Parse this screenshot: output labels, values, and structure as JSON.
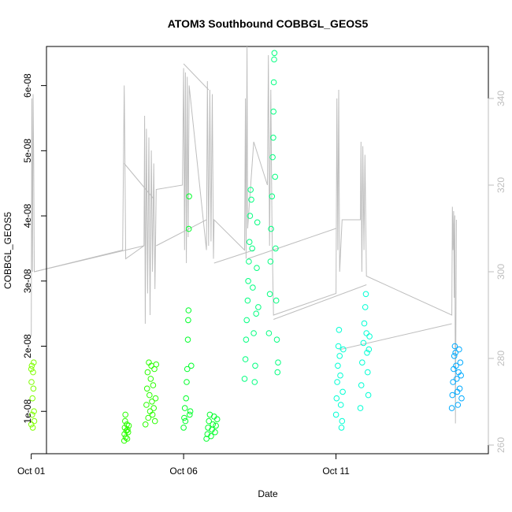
{
  "chart_data": {
    "type": "scatter",
    "title": "ATOM3 Southbound COBBGL_GEOS5",
    "xlabel": "Date",
    "ylabel": "COBBGL_GEOS5",
    "xlim_days": [
      0.5,
      15.0
    ],
    "ylim": [
      3.5e-09,
      6.6e-08
    ],
    "y2lim": [
      258,
      352
    ],
    "x_ticks": [
      {
        "day": 0,
        "label": "Oct 01"
      },
      {
        "day": 5,
        "label": "Oct 06"
      },
      {
        "day": 10,
        "label": "Oct 11"
      }
    ],
    "y_ticks": [
      {
        "value": 1e-08,
        "label": "1e-08"
      },
      {
        "value": 2e-08,
        "label": "2e-08"
      },
      {
        "value": 3e-08,
        "label": "3e-08"
      },
      {
        "value": 4e-08,
        "label": "4e-08"
      },
      {
        "value": 5e-08,
        "label": "5e-08"
      },
      {
        "value": 6e-08,
        "label": "6e-08"
      }
    ],
    "y2_ticks": [
      {
        "value": 260,
        "label": "260"
      },
      {
        "value": 280,
        "label": "280"
      },
      {
        "value": 300,
        "label": "300"
      },
      {
        "value": 320,
        "label": "320"
      },
      {
        "value": 340,
        "label": "340"
      }
    ],
    "series": [
      {
        "color": "#7fff00",
        "points": [
          [
            0.0,
            8e-09
          ],
          [
            0.0,
            1.65e-08
          ],
          [
            0.01,
            1.45e-08
          ],
          [
            0.02,
            1.7e-08
          ],
          [
            0.03,
            9.5e-09
          ],
          [
            0.04,
            1.2e-08
          ],
          [
            0.05,
            7.5e-09
          ],
          [
            0.06,
            1.6e-08
          ],
          [
            0.07,
            1.35e-08
          ],
          [
            0.08,
            1.75e-08
          ],
          [
            0.09,
            1e-08
          ],
          [
            0.1,
            8.5e-09
          ]
        ]
      },
      {
        "color": "#2aff00",
        "points": [
          [
            3.05,
            5.5e-09
          ],
          [
            3.06,
            6.5e-09
          ],
          [
            3.07,
            7.5e-09
          ],
          [
            3.08,
            8.5e-09
          ],
          [
            3.09,
            9.5e-09
          ],
          [
            3.1,
            6e-09
          ],
          [
            3.12,
            7e-09
          ],
          [
            3.14,
            8e-09
          ],
          [
            3.15,
            5.8e-09
          ],
          [
            3.16,
            7.2e-09
          ],
          [
            3.18,
            6.8e-09
          ],
          [
            3.2,
            7.8e-09
          ],
          [
            3.75,
            8e-09
          ],
          [
            3.78,
            1.1e-08
          ],
          [
            3.8,
            1.35e-08
          ],
          [
            3.82,
            1.6e-08
          ],
          [
            3.84,
            9e-09
          ],
          [
            3.86,
            1.75e-08
          ],
          [
            3.88,
            1.25e-08
          ],
          [
            3.9,
            1e-08
          ],
          [
            3.92,
            1.5e-08
          ],
          [
            3.94,
            1.7e-08
          ],
          [
            3.96,
            1.15e-08
          ],
          [
            3.98,
            9.5e-09
          ],
          [
            4.0,
            1.4e-08
          ],
          [
            4.02,
            1.05e-08
          ],
          [
            4.04,
            1.65e-08
          ],
          [
            4.06,
            8.5e-09
          ],
          [
            4.08,
            1.2e-08
          ],
          [
            4.1,
            1.72e-08
          ]
        ]
      },
      {
        "color": "#00ff2a",
        "points": [
          [
            5.0,
            7.5e-09
          ],
          [
            5.02,
            9e-09
          ],
          [
            5.04,
            1.05e-08
          ],
          [
            5.06,
            8.5e-09
          ],
          [
            5.08,
            1.2e-08
          ],
          [
            5.1,
            1.45e-08
          ],
          [
            5.12,
            1.65e-08
          ],
          [
            5.14,
            2.1e-08
          ],
          [
            5.15,
            2.4e-08
          ],
          [
            5.16,
            2.55e-08
          ],
          [
            5.17,
            3.8e-08
          ],
          [
            5.18,
            4.3e-08
          ],
          [
            5.2,
            9.5e-09
          ],
          [
            5.22,
            1e-08
          ],
          [
            5.25,
            1.7e-08
          ],
          [
            5.75,
            5.8e-09
          ],
          [
            5.78,
            6.5e-09
          ],
          [
            5.8,
            7.5e-09
          ],
          [
            5.83,
            8.5e-09
          ],
          [
            5.86,
            9.5e-09
          ],
          [
            5.9,
            6.2e-09
          ],
          [
            5.93,
            7.2e-09
          ],
          [
            5.96,
            8e-09
          ],
          [
            6.0,
            9.2e-09
          ],
          [
            6.03,
            6.8e-09
          ],
          [
            6.06,
            7.8e-09
          ],
          [
            6.1,
            8.8e-09
          ]
        ]
      },
      {
        "color": "#00ff7f",
        "points": [
          [
            7.0,
            1.5e-08
          ],
          [
            7.03,
            1.8e-08
          ],
          [
            7.05,
            2.1e-08
          ],
          [
            7.07,
            2.4e-08
          ],
          [
            7.1,
            2.7e-08
          ],
          [
            7.12,
            3e-08
          ],
          [
            7.14,
            3.3e-08
          ],
          [
            7.16,
            3.6e-08
          ],
          [
            7.18,
            4e-08
          ],
          [
            7.2,
            4.4e-08
          ],
          [
            7.22,
            4.25e-08
          ],
          [
            7.25,
            3.5e-08
          ],
          [
            7.27,
            2.9e-08
          ],
          [
            7.3,
            2.2e-08
          ],
          [
            7.33,
            1.45e-08
          ],
          [
            7.35,
            1.7e-08
          ],
          [
            7.38,
            2.5e-08
          ],
          [
            7.4,
            3.2e-08
          ],
          [
            7.42,
            3.9e-08
          ],
          [
            7.45,
            2.6e-08
          ],
          [
            7.8,
            2.2e-08
          ],
          [
            7.83,
            2.8e-08
          ],
          [
            7.85,
            3.3e-08
          ],
          [
            7.87,
            3.8e-08
          ],
          [
            7.9,
            4.3e-08
          ],
          [
            7.92,
            4.9e-08
          ],
          [
            7.94,
            5.2e-08
          ],
          [
            7.95,
            5.6e-08
          ],
          [
            7.96,
            6.05e-08
          ],
          [
            7.97,
            6.4e-08
          ],
          [
            7.98,
            6.5e-08
          ],
          [
            8.0,
            4.6e-08
          ],
          [
            8.02,
            3.5e-08
          ],
          [
            8.04,
            2.7e-08
          ],
          [
            8.06,
            2.1e-08
          ],
          [
            8.08,
            1.6e-08
          ],
          [
            8.1,
            1.75e-08
          ]
        ]
      },
      {
        "color": "#00ffd4",
        "points": [
          [
            10.0,
            9.5e-09
          ],
          [
            10.02,
            1.2e-08
          ],
          [
            10.04,
            1.45e-08
          ],
          [
            10.06,
            1.7e-08
          ],
          [
            10.08,
            2e-08
          ],
          [
            10.1,
            2.25e-08
          ],
          [
            10.12,
            1.85e-08
          ],
          [
            10.14,
            1.55e-08
          ],
          [
            10.16,
            1.1e-08
          ],
          [
            10.18,
            7.5e-09
          ],
          [
            10.2,
            8.5e-09
          ],
          [
            10.22,
            1.3e-08
          ],
          [
            10.24,
            1.95e-08
          ],
          [
            10.8,
            1.05e-08
          ],
          [
            10.83,
            1.4e-08
          ],
          [
            10.86,
            1.75e-08
          ],
          [
            10.9,
            2.05e-08
          ],
          [
            10.93,
            2.35e-08
          ],
          [
            10.96,
            2.6e-08
          ],
          [
            10.98,
            2.8e-08
          ],
          [
            11.0,
            2.2e-08
          ],
          [
            11.02,
            1.9e-08
          ],
          [
            11.04,
            1.6e-08
          ],
          [
            11.06,
            1.25e-08
          ],
          [
            11.08,
            1.95e-08
          ],
          [
            11.1,
            2.15e-08
          ]
        ]
      },
      {
        "color": "#00aaff",
        "points": [
          [
            13.8,
            1.05e-08
          ],
          [
            13.82,
            1.25e-08
          ],
          [
            13.84,
            1.45e-08
          ],
          [
            13.86,
            1.65e-08
          ],
          [
            13.88,
            1.85e-08
          ],
          [
            13.9,
            2e-08
          ],
          [
            13.92,
            1.9e-08
          ],
          [
            13.94,
            1.7e-08
          ],
          [
            13.96,
            1.5e-08
          ],
          [
            13.98,
            1.3e-08
          ],
          [
            14.0,
            1.1e-08
          ],
          [
            14.02,
            1.6e-08
          ],
          [
            14.04,
            1.95e-08
          ],
          [
            14.06,
            1.35e-08
          ],
          [
            14.08,
            1.75e-08
          ],
          [
            14.1,
            1.55e-08
          ],
          [
            14.12,
            1.2e-08
          ]
        ]
      }
    ],
    "secondary_line": {
      "color": "#bebebe",
      "axis": "right",
      "points": [
        [
          0.0,
          285
        ],
        [
          0.02,
          340
        ],
        [
          0.04,
          300
        ],
        [
          0.06,
          341
        ],
        [
          0.08,
          325
        ],
        [
          0.1,
          300
        ],
        [
          3.0,
          305
        ],
        [
          3.05,
          343
        ],
        [
          3.07,
          330
        ],
        [
          3.1,
          303
        ],
        [
          3.7,
          306
        ],
        [
          3.72,
          336
        ],
        [
          3.74,
          288
        ],
        [
          3.78,
          333
        ],
        [
          3.82,
          295
        ],
        [
          3.86,
          331
        ],
        [
          3.9,
          290
        ],
        [
          3.94,
          328
        ],
        [
          3.98,
          300
        ],
        [
          4.02,
          325
        ],
        [
          4.06,
          296
        ],
        [
          4.1,
          319
        ],
        [
          4.96,
          320
        ],
        [
          5.0,
          347
        ],
        [
          5.03,
          305
        ],
        [
          5.06,
          346
        ],
        [
          5.09,
          302
        ],
        [
          5.12,
          345
        ],
        [
          5.15,
          308
        ],
        [
          5.18,
          343
        ],
        [
          5.75,
          305
        ],
        [
          5.78,
          344
        ],
        [
          5.82,
          306
        ],
        [
          5.86,
          342
        ],
        [
          5.9,
          307
        ],
        [
          5.94,
          341
        ],
        [
          5.98,
          303
        ],
        [
          6.0,
          312
        ],
        [
          7.0,
          305
        ],
        [
          7.03,
          340
        ],
        [
          7.05,
          303
        ],
        [
          7.08,
          352
        ],
        [
          7.1,
          310
        ],
        [
          7.3,
          330
        ],
        [
          7.75,
          320
        ],
        [
          7.78,
          350
        ],
        [
          7.82,
          306
        ],
        [
          7.86,
          342
        ],
        [
          7.9,
          310
        ],
        [
          7.95,
          290
        ],
        [
          10.0,
          295
        ],
        [
          10.03,
          340
        ],
        [
          10.06,
          305
        ],
        [
          10.09,
          342
        ],
        [
          10.12,
          300
        ],
        [
          10.2,
          312
        ],
        [
          10.8,
          312
        ],
        [
          10.82,
          330
        ],
        [
          10.85,
          300
        ],
        [
          10.88,
          329
        ],
        [
          10.92,
          305
        ],
        [
          10.95,
          327
        ],
        [
          11.0,
          299
        ],
        [
          13.8,
          290
        ],
        [
          13.82,
          315
        ],
        [
          13.84,
          305
        ],
        [
          13.86,
          314
        ],
        [
          13.88,
          294
        ],
        [
          13.9,
          313
        ],
        [
          13.92,
          265
        ],
        [
          13.95,
          312
        ]
      ],
      "connectors": [
        [
          [
            0.1,
            300
          ],
          [
            3.7,
            306
          ]
        ],
        [
          [
            3.05,
            325
          ],
          [
            4.0,
            317
          ]
        ],
        [
          [
            4.1,
            306
          ],
          [
            5.75,
            312
          ]
        ],
        [
          [
            5.0,
            348
          ],
          [
            5.82,
            342
          ]
        ],
        [
          [
            6.0,
            302
          ],
          [
            7.3,
            305
          ]
        ],
        [
          [
            7.1,
            303
          ],
          [
            10.0,
            310
          ]
        ],
        [
          [
            7.95,
            289
          ],
          [
            11.0,
            297
          ]
        ],
        [
          [
            10.1,
            282
          ],
          [
            13.8,
            288
          ]
        ]
      ]
    }
  }
}
